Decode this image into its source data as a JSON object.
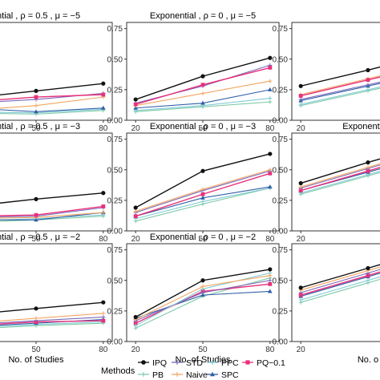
{
  "colors": {
    "IPQ": "#111111",
    "STD": "#7b68b8",
    "PPC": "#7fc9d4",
    "PQ-0.1": "#e8307a",
    "PB": "#7fcaa8",
    "Naive": "#f4a460",
    "SPC": "#2f5fa7"
  },
  "legend": {
    "title": "Methods",
    "items": [
      {
        "name": "IPQ",
        "marker": "circle"
      },
      {
        "name": "STD",
        "marker": "plus"
      },
      {
        "name": "PPC",
        "marker": "plus"
      },
      {
        "name": "PQ−0.1",
        "key": "PQ-0.1",
        "marker": "square"
      },
      {
        "name": "PB",
        "marker": "plus"
      },
      {
        "name": "Naive",
        "marker": "plus"
      },
      {
        "name": "SPC",
        "marker": "triangle"
      }
    ]
  },
  "chart_data": [
    {
      "type": "line",
      "row": 0,
      "col": 0,
      "title": "ential , ρ = 0.5 , μ = −5",
      "xlabel": "No. of Studies",
      "ylabel": "",
      "x": [
        20,
        50,
        80
      ],
      "ylim": [
        0,
        0.8
      ],
      "x_ticks": [
        "50",
        "80"
      ],
      "y_ticks": [],
      "series": [
        {
          "key": "IPQ",
          "values": [
            0.18,
            0.24,
            0.3
          ]
        },
        {
          "key": "PQ-0.1",
          "values": [
            0.15,
            0.19,
            0.21
          ]
        },
        {
          "key": "STD",
          "values": [
            0.14,
            0.17,
            0.22
          ]
        },
        {
          "key": "SPC",
          "values": [
            0.1,
            0.07,
            0.1
          ]
        },
        {
          "key": "PPC",
          "values": [
            0.07,
            0.06,
            0.09
          ]
        },
        {
          "key": "PB",
          "values": [
            0.06,
            0.05,
            0.08
          ]
        },
        {
          "key": "Naive",
          "values": [
            0.08,
            0.12,
            0.19
          ]
        }
      ]
    },
    {
      "type": "line",
      "row": 0,
      "col": 1,
      "title": "Exponential , ρ = 0 , μ = −5",
      "xlabel": "No. of Studies",
      "ylabel": "",
      "x": [
        20,
        50,
        80
      ],
      "ylim": [
        0,
        0.8
      ],
      "x_ticks": [
        "20",
        "50",
        "80"
      ],
      "y_ticks": [
        "0.00",
        "0.25",
        "0.50",
        "0.75"
      ],
      "series": [
        {
          "key": "IPQ",
          "values": [
            0.17,
            0.36,
            0.51
          ]
        },
        {
          "key": "PQ-0.1",
          "values": [
            0.13,
            0.29,
            0.43
          ]
        },
        {
          "key": "STD",
          "values": [
            0.14,
            0.28,
            0.45
          ]
        },
        {
          "key": "Naive",
          "values": [
            0.12,
            0.22,
            0.32
          ]
        },
        {
          "key": "SPC",
          "values": [
            0.1,
            0.14,
            0.25
          ]
        },
        {
          "key": "PPC",
          "values": [
            0.08,
            0.12,
            0.18
          ]
        },
        {
          "key": "PB",
          "values": [
            0.07,
            0.11,
            0.15
          ]
        }
      ]
    },
    {
      "type": "line",
      "row": 0,
      "col": 2,
      "title": "",
      "xlabel": "No. of",
      "ylabel": "",
      "x": [
        20,
        50,
        80
      ],
      "ylim": [
        0,
        0.8
      ],
      "x_ticks": [
        "20"
      ],
      "y_ticks": [
        "0.00",
        "0.25",
        "0.50",
        "0.75"
      ],
      "series": [
        {
          "key": "IPQ",
          "values": [
            0.28,
            0.41,
            0.55
          ]
        },
        {
          "key": "PQ-0.1",
          "values": [
            0.2,
            0.33,
            0.46
          ]
        },
        {
          "key": "Naive",
          "values": [
            0.21,
            0.34,
            0.47
          ]
        },
        {
          "key": "STD",
          "values": [
            0.17,
            0.29,
            0.41
          ]
        },
        {
          "key": "SPC",
          "values": [
            0.16,
            0.28,
            0.4
          ]
        },
        {
          "key": "PPC",
          "values": [
            0.13,
            0.25,
            0.37
          ]
        },
        {
          "key": "PB",
          "values": [
            0.12,
            0.24,
            0.36
          ]
        }
      ]
    },
    {
      "type": "line",
      "row": 1,
      "col": 0,
      "title": "ential , ρ = 0.5 , μ = −3",
      "xlabel": "No. of Studies",
      "ylabel": "",
      "x": [
        20,
        50,
        80
      ],
      "ylim": [
        0,
        0.8
      ],
      "x_ticks": [
        "50",
        "80"
      ],
      "y_ticks": [],
      "series": [
        {
          "key": "IPQ",
          "values": [
            0.2,
            0.26,
            0.31
          ]
        },
        {
          "key": "PQ-0.1",
          "values": [
            0.12,
            0.13,
            0.2
          ]
        },
        {
          "key": "STD",
          "values": [
            0.11,
            0.12,
            0.19
          ]
        },
        {
          "key": "Naive",
          "values": [
            0.1,
            0.11,
            0.15
          ]
        },
        {
          "key": "SPC",
          "values": [
            0.09,
            0.09,
            0.15
          ]
        },
        {
          "key": "PPC",
          "values": [
            0.08,
            0.1,
            0.13
          ]
        },
        {
          "key": "PB",
          "values": [
            0.07,
            0.09,
            0.12
          ]
        }
      ]
    },
    {
      "type": "line",
      "row": 1,
      "col": 1,
      "title": "Exponential , ρ = 0 , μ = −3",
      "xlabel": "No. of Studies",
      "ylabel": "",
      "x": [
        20,
        50,
        80
      ],
      "ylim": [
        0,
        0.8
      ],
      "x_ticks": [
        "20",
        "50",
        "80"
      ],
      "y_ticks": [
        "0.00",
        "0.25",
        "0.50",
        "0.75"
      ],
      "series": [
        {
          "key": "IPQ",
          "values": [
            0.19,
            0.49,
            0.63
          ]
        },
        {
          "key": "Naive",
          "values": [
            0.16,
            0.34,
            0.5
          ]
        },
        {
          "key": "STD",
          "values": [
            0.15,
            0.33,
            0.49
          ]
        },
        {
          "key": "PQ-0.1",
          "values": [
            0.12,
            0.3,
            0.47
          ]
        },
        {
          "key": "SPC",
          "values": [
            0.12,
            0.27,
            0.36
          ]
        },
        {
          "key": "PPC",
          "values": [
            0.1,
            0.24,
            0.35
          ]
        },
        {
          "key": "PB",
          "values": [
            0.08,
            0.22,
            0.35
          ]
        }
      ]
    },
    {
      "type": "line",
      "row": 1,
      "col": 2,
      "title": "Exponential ,",
      "xlabel": "No. o",
      "ylabel": "",
      "x": [
        20,
        50,
        80
      ],
      "ylim": [
        0,
        0.8
      ],
      "x_ticks": [
        "20"
      ],
      "y_ticks": [
        "0.00",
        "0.25",
        "0.50",
        "0.75"
      ],
      "series": [
        {
          "key": "IPQ",
          "values": [
            0.39,
            0.56,
            0.72
          ]
        },
        {
          "key": "Naive",
          "values": [
            0.36,
            0.52,
            0.68
          ]
        },
        {
          "key": "STD",
          "values": [
            0.35,
            0.51,
            0.67
          ]
        },
        {
          "key": "PQ-0.1",
          "values": [
            0.33,
            0.49,
            0.65
          ]
        },
        {
          "key": "SPC",
          "values": [
            0.33,
            0.48,
            0.63
          ]
        },
        {
          "key": "PPC",
          "values": [
            0.31,
            0.46,
            0.61
          ]
        },
        {
          "key": "PB",
          "values": [
            0.3,
            0.45,
            0.6
          ]
        }
      ]
    },
    {
      "type": "line",
      "row": 2,
      "col": 0,
      "title": "ential , ρ = 0.5 , μ = −2",
      "xlabel": "No. of Studies",
      "ylabel": "",
      "x": [
        20,
        50,
        80
      ],
      "ylim": [
        0,
        0.8
      ],
      "x_ticks": [
        "50",
        "80"
      ],
      "y_ticks": [],
      "series": [
        {
          "key": "IPQ",
          "values": [
            0.22,
            0.27,
            0.32
          ]
        },
        {
          "key": "Naive",
          "values": [
            0.15,
            0.19,
            0.23
          ]
        },
        {
          "key": "STD",
          "values": [
            0.14,
            0.17,
            0.2
          ]
        },
        {
          "key": "PQ-0.1",
          "values": [
            0.13,
            0.16,
            0.17
          ]
        },
        {
          "key": "SPC",
          "values": [
            0.12,
            0.15,
            0.18
          ]
        },
        {
          "key": "PPC",
          "values": [
            0.11,
            0.14,
            0.16
          ]
        },
        {
          "key": "PB",
          "values": [
            0.1,
            0.13,
            0.15
          ]
        }
      ]
    },
    {
      "type": "line",
      "row": 2,
      "col": 1,
      "title": "Exponential , ρ = 0 , μ = −2",
      "xlabel": "No. of Studies",
      "ylabel": "",
      "x": [
        20,
        50,
        80
      ],
      "ylim": [
        0,
        0.8
      ],
      "x_ticks": [
        "20",
        "50",
        "80"
      ],
      "y_ticks": [
        "0.00",
        "0.25",
        "0.50",
        "0.75"
      ],
      "series": [
        {
          "key": "IPQ",
          "values": [
            0.2,
            0.5,
            0.59
          ]
        },
        {
          "key": "Naive",
          "values": [
            0.18,
            0.45,
            0.54
          ]
        },
        {
          "key": "PPC",
          "values": [
            0.13,
            0.43,
            0.56
          ]
        },
        {
          "key": "STD",
          "values": [
            0.17,
            0.4,
            0.5
          ]
        },
        {
          "key": "PQ-0.1",
          "values": [
            0.15,
            0.41,
            0.47
          ]
        },
        {
          "key": "SPC",
          "values": [
            0.19,
            0.38,
            0.41
          ]
        },
        {
          "key": "PB",
          "values": [
            0.11,
            0.37,
            0.52
          ]
        }
      ]
    },
    {
      "type": "line",
      "row": 2,
      "col": 2,
      "title": "",
      "xlabel": "No. o",
      "ylabel": "",
      "x": [
        20,
        50,
        80
      ],
      "ylim": [
        0,
        0.8
      ],
      "x_ticks": [
        "20"
      ],
      "y_ticks": [
        "0.00",
        "0.25",
        "0.50",
        "0.75"
      ],
      "series": [
        {
          "key": "IPQ",
          "values": [
            0.44,
            0.6,
            0.76
          ]
        },
        {
          "key": "Naive",
          "values": [
            0.42,
            0.58,
            0.74
          ]
        },
        {
          "key": "STD",
          "values": [
            0.4,
            0.56,
            0.72
          ]
        },
        {
          "key": "PQ-0.1",
          "values": [
            0.38,
            0.54,
            0.7
          ]
        },
        {
          "key": "SPC",
          "values": [
            0.37,
            0.53,
            0.69
          ]
        },
        {
          "key": "PPC",
          "values": [
            0.34,
            0.5,
            0.66
          ]
        },
        {
          "key": "PB",
          "values": [
            0.32,
            0.48,
            0.64
          ]
        }
      ]
    }
  ]
}
